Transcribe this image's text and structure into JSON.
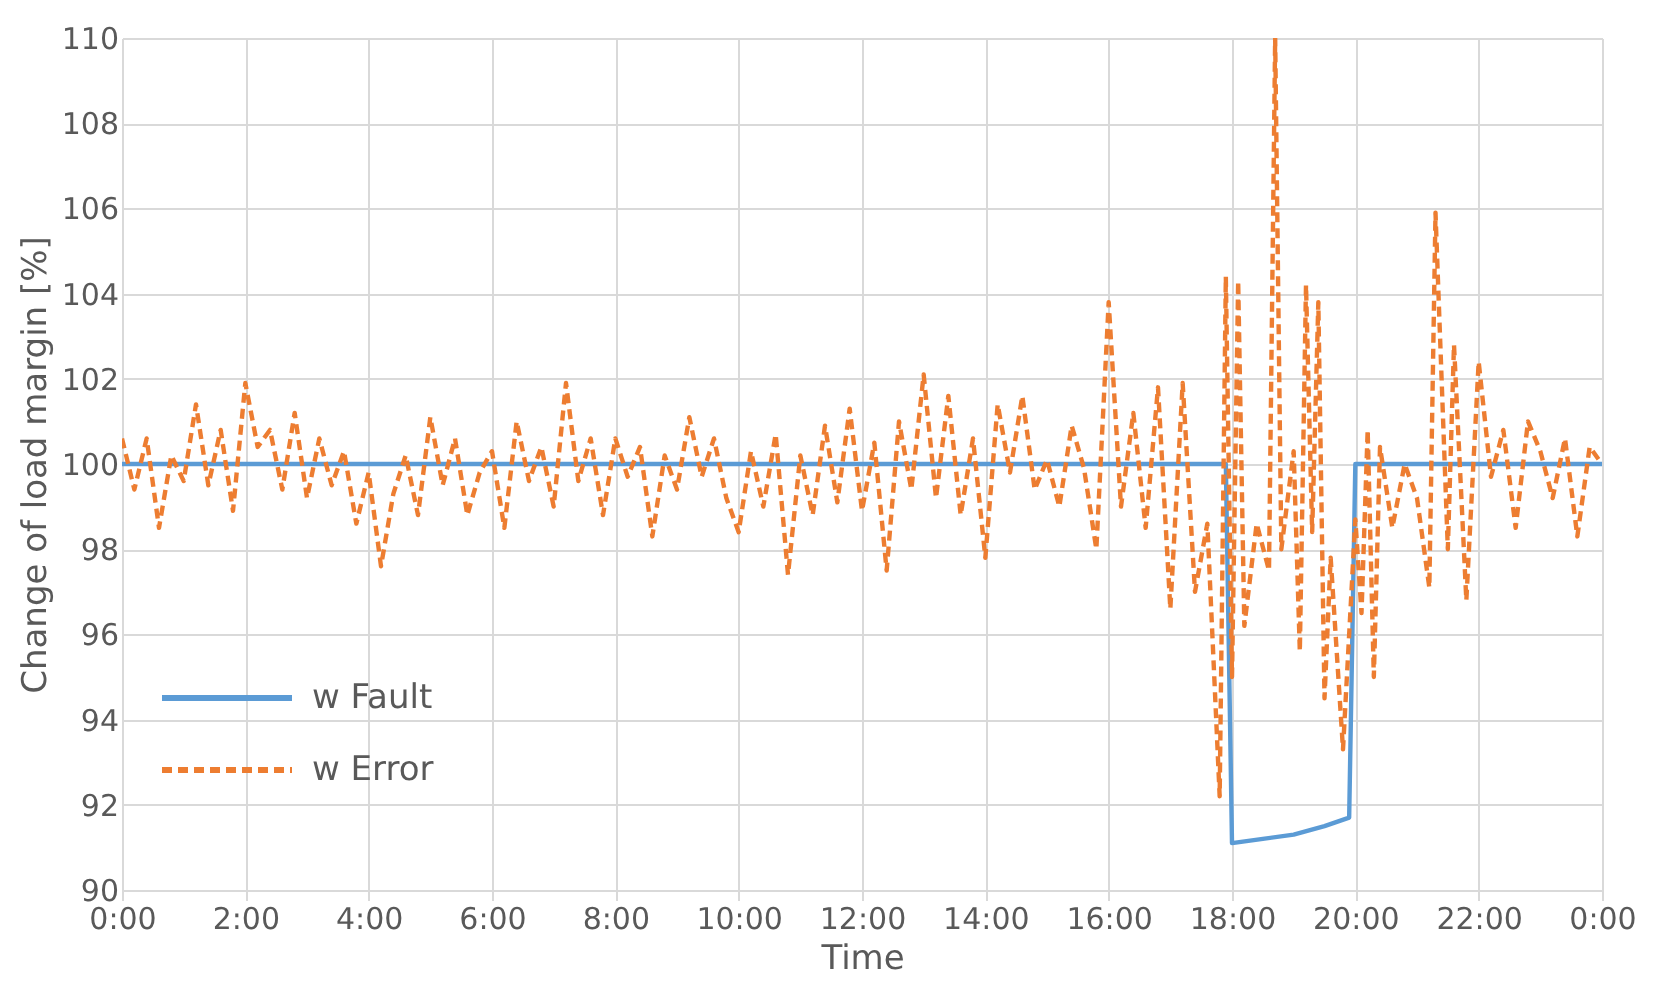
{
  "chart_data": {
    "type": "line",
    "xlabel": "Time",
    "ylabel": "Change of load margin [%]",
    "xlim": [
      0,
      24
    ],
    "ylim": [
      90,
      110
    ],
    "xticks": [
      {
        "value": 0,
        "label": "0:00"
      },
      {
        "value": 2,
        "label": "2:00"
      },
      {
        "value": 4,
        "label": "4:00"
      },
      {
        "value": 6,
        "label": "6:00"
      },
      {
        "value": 8,
        "label": "8:00"
      },
      {
        "value": 10,
        "label": "10:00"
      },
      {
        "value": 12,
        "label": "12:00"
      },
      {
        "value": 14,
        "label": "14:00"
      },
      {
        "value": 16,
        "label": "16:00"
      },
      {
        "value": 18,
        "label": "18:00"
      },
      {
        "value": 20,
        "label": "20:00"
      },
      {
        "value": 22,
        "label": "22:00"
      },
      {
        "value": 24,
        "label": "0:00"
      }
    ],
    "yticks": [
      90,
      92,
      94,
      96,
      98,
      100,
      102,
      104,
      106,
      108,
      110
    ],
    "grid": true,
    "legend": "bottom left",
    "series": [
      {
        "name": "w Fault",
        "color": "#5b9bd5",
        "line_style": "solid",
        "x": [
          0,
          17.9,
          18.0,
          18.5,
          19.0,
          19.5,
          19.9,
          20.0,
          24
        ],
        "values": [
          100,
          100,
          91.1,
          91.2,
          91.3,
          91.5,
          91.7,
          100,
          100
        ]
      },
      {
        "name": "w Error",
        "color": "#ed7d31",
        "line_style": "dashed",
        "x": [
          0.0,
          0.2,
          0.4,
          0.6,
          0.8,
          1.0,
          1.2,
          1.4,
          1.6,
          1.8,
          2.0,
          2.2,
          2.4,
          2.6,
          2.8,
          3.0,
          3.2,
          3.4,
          3.6,
          3.8,
          4.0,
          4.2,
          4.4,
          4.6,
          4.8,
          5.0,
          5.2,
          5.4,
          5.6,
          5.8,
          6.0,
          6.2,
          6.4,
          6.6,
          6.8,
          7.0,
          7.2,
          7.4,
          7.6,
          7.8,
          8.0,
          8.2,
          8.4,
          8.6,
          8.8,
          9.0,
          9.2,
          9.4,
          9.6,
          9.8,
          10.0,
          10.2,
          10.4,
          10.6,
          10.8,
          11.0,
          11.2,
          11.4,
          11.6,
          11.8,
          12.0,
          12.2,
          12.4,
          12.6,
          12.8,
          13.0,
          13.2,
          13.4,
          13.6,
          13.8,
          14.0,
          14.2,
          14.4,
          14.6,
          14.8,
          15.0,
          15.2,
          15.4,
          15.6,
          15.8,
          16.0,
          16.2,
          16.4,
          16.6,
          16.8,
          17.0,
          17.2,
          17.4,
          17.6,
          17.8,
          17.9,
          18.0,
          18.1,
          18.2,
          18.4,
          18.6,
          18.7,
          18.8,
          19.0,
          19.1,
          19.2,
          19.3,
          19.4,
          19.5,
          19.6,
          19.8,
          20.0,
          20.1,
          20.2,
          20.3,
          20.4,
          20.6,
          20.8,
          21.0,
          21.2,
          21.3,
          21.5,
          21.6,
          21.8,
          22.0,
          22.2,
          22.4,
          22.6,
          22.8,
          23.0,
          23.2,
          23.4,
          23.6,
          23.8,
          24.0
        ],
        "values": [
          100.6,
          99.4,
          100.6,
          98.5,
          100.2,
          99.6,
          101.4,
          99.5,
          100.8,
          98.9,
          101.9,
          100.4,
          100.8,
          99.4,
          101.2,
          99.2,
          100.6,
          99.5,
          100.3,
          98.6,
          99.8,
          97.6,
          99.3,
          100.2,
          98.8,
          101.1,
          99.5,
          100.6,
          98.8,
          99.8,
          100.3,
          98.5,
          101.0,
          99.6,
          100.4,
          99.0,
          101.9,
          99.6,
          100.6,
          98.8,
          100.6,
          99.7,
          100.4,
          98.3,
          100.2,
          99.4,
          101.1,
          99.7,
          100.6,
          99.2,
          98.4,
          100.3,
          99.0,
          100.7,
          97.4,
          100.2,
          98.8,
          100.9,
          99.1,
          101.3,
          98.9,
          100.5,
          97.5,
          101.0,
          99.4,
          102.1,
          99.2,
          101.6,
          98.8,
          100.6,
          97.8,
          101.4,
          99.8,
          101.6,
          99.4,
          100.1,
          99.0,
          100.9,
          99.9,
          98.0,
          103.8,
          99.0,
          101.2,
          98.5,
          101.8,
          96.6,
          101.9,
          97.0,
          98.6,
          92.2,
          104.4,
          95.0,
          104.3,
          96.2,
          98.6,
          97.5,
          110.0,
          98.0,
          100.3,
          95.6,
          104.2,
          98.4,
          103.8,
          94.5,
          97.8,
          93.3,
          98.7,
          96.5,
          100.8,
          95.0,
          100.4,
          98.5,
          100.0,
          99.2,
          97.1,
          105.9,
          98.0,
          102.8,
          96.8,
          102.4,
          99.7,
          100.8,
          98.5,
          101.0,
          100.3,
          99.2,
          100.6,
          98.3,
          100.4,
          100.0
        ]
      }
    ]
  }
}
